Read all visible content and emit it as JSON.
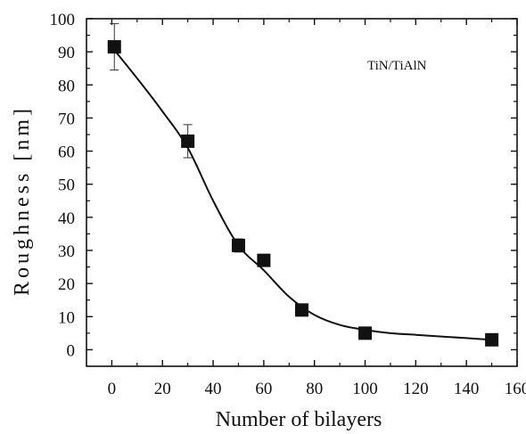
{
  "chart_data": {
    "type": "scatter",
    "xlabel": "Number of bilayers",
    "ylabel": "Roughness [nm]",
    "xlim": [
      -10,
      160
    ],
    "ylim": [
      -5,
      100
    ],
    "xticks": [
      0,
      20,
      40,
      60,
      80,
      100,
      120,
      140,
      160
    ],
    "yticks": [
      0,
      10,
      20,
      30,
      40,
      50,
      60,
      70,
      80,
      90,
      100
    ],
    "annotation": "TiN/TiAlN",
    "marker": "square",
    "color": "#111111",
    "series": [
      {
        "x": [
          1,
          30,
          50,
          60,
          75,
          100,
          150
        ],
        "y": [
          91.5,
          63,
          31.5,
          27,
          12,
          5,
          3
        ],
        "error": [
          7,
          5,
          2,
          1.5,
          1,
          0.5,
          0.3
        ]
      }
    ],
    "fit_curve": {
      "x": [
        0,
        10,
        20,
        30,
        40,
        50,
        60,
        70,
        80,
        90,
        100,
        110,
        120,
        130,
        140,
        150
      ],
      "y": [
        91.5,
        82,
        72,
        61,
        45,
        31.5,
        24,
        16,
        10.5,
        7.5,
        6,
        5,
        4.5,
        4,
        3.5,
        3
      ]
    }
  }
}
